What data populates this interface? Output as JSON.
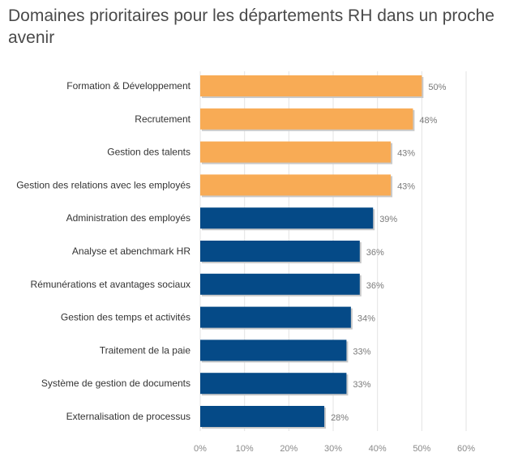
{
  "chart_data": {
    "type": "bar",
    "orientation": "horizontal",
    "title": "Domaines prioritaires pour les départements RH dans un proche avenir",
    "categories": [
      "Formation & Développement",
      "Recrutement",
      "Gestion des talents",
      "Gestion des relations avec les employés",
      "Administration des employés",
      "Analyse et abenchmark HR",
      "Rémunérations et avantages sociaux",
      "Gestion des temps et activités",
      "Traitement de la paie",
      "Système de gestion de documents",
      "Externalisation de processus"
    ],
    "values": [
      50,
      48,
      43,
      43,
      39,
      36,
      36,
      34,
      33,
      33,
      28
    ],
    "value_labels": [
      "50%",
      "48%",
      "43%",
      "43%",
      "39%",
      "36%",
      "36%",
      "34%",
      "33%",
      "33%",
      "28%"
    ],
    "bar_colors": [
      "#F8AB55",
      "#F8AB55",
      "#F8AB55",
      "#F8AB55",
      "#054A87",
      "#054A87",
      "#054A87",
      "#054A87",
      "#054A87",
      "#054A87",
      "#054A87"
    ],
    "xlim": [
      0,
      60
    ],
    "x_ticks": [
      "0%",
      "10%",
      "20%",
      "30%",
      "40%",
      "50%",
      "60%"
    ],
    "grid": true,
    "legend": "none"
  }
}
